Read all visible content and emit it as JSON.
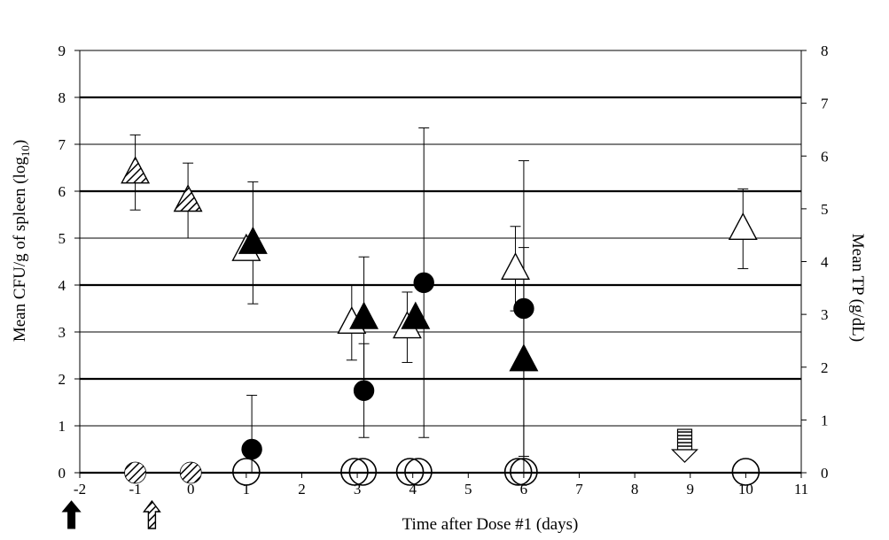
{
  "chart_data": {
    "type": "scatter",
    "xlabel": "Time after Dose #1 (days)",
    "ylabel_left": "Mean CFU/g of spleen (log10)",
    "ylabel_left_main": "Mean CFU/g of spleen (log",
    "ylabel_left_sub": "10",
    "ylabel_left_end": ")",
    "ylabel_right": "Mean TP (g/dL)",
    "xlim": [
      -2,
      11
    ],
    "ylim_left": [
      0,
      9
    ],
    "ylim_right": [
      0,
      8
    ],
    "x_ticks": [
      "-2",
      "-1",
      "0",
      "1",
      "2",
      "3",
      "4",
      "5",
      "6",
      "7",
      "8",
      "9",
      "10",
      "11"
    ],
    "y_left_ticks": [
      "0",
      "1",
      "2",
      "3",
      "4",
      "5",
      "6",
      "7",
      "8",
      "9"
    ],
    "y_right_ticks": [
      "0",
      "1",
      "2",
      "3",
      "4",
      "5",
      "6",
      "7",
      "8"
    ],
    "grid": "horizontal",
    "legend": "none",
    "series": [
      {
        "marker": "hatched-triangle",
        "axis": "left",
        "points": [
          {
            "x": -1,
            "y": 6.4,
            "err": 0.8
          },
          {
            "x": -0.05,
            "y": 5.8,
            "err": 0.8
          }
        ]
      },
      {
        "marker": "open-triangle",
        "axis": "left",
        "points": [
          {
            "x": 1.0,
            "y": 4.75
          },
          {
            "x": 2.9,
            "y": 3.2,
            "err": 0.8
          },
          {
            "x": 3.9,
            "y": 3.1,
            "err": 0.75
          },
          {
            "x": 5.85,
            "y": 4.35,
            "err": 0.9
          },
          {
            "x": 9.95,
            "y": 5.2,
            "err": 0.85
          }
        ]
      },
      {
        "marker": "filled-triangle",
        "axis": "left",
        "points": [
          {
            "x": 1.12,
            "y": 4.9,
            "err": 1.3
          },
          {
            "x": 3.12,
            "y": 3.3,
            "err": 1.3
          },
          {
            "x": 4.05,
            "y": 3.3
          },
          {
            "x": 6.0,
            "y": 2.4,
            "err": 2.4
          }
        ]
      },
      {
        "marker": "filled-circle",
        "axis": "left",
        "points": [
          {
            "x": 1.1,
            "y": 0.5,
            "err": 1.15
          },
          {
            "x": 3.12,
            "y": 1.75,
            "err": 1.0
          },
          {
            "x": 4.2,
            "y": 4.05,
            "err": 3.3
          },
          {
            "x": 6.0,
            "y": 3.5,
            "err": 3.15
          }
        ]
      },
      {
        "marker": "open-circle",
        "axis": "right",
        "points": [
          {
            "x": 1.0,
            "y": 0.0
          },
          {
            "x": 2.95,
            "y": 0.0
          },
          {
            "x": 3.1,
            "y": 0.0
          },
          {
            "x": 3.95,
            "y": 0.0
          },
          {
            "x": 4.1,
            "y": 0.0
          },
          {
            "x": 5.9,
            "y": 0.0
          },
          {
            "x": 6.0,
            "y": 0.0
          },
          {
            "x": 10.0,
            "y": 0.0
          }
        ]
      },
      {
        "marker": "hatched-circle",
        "axis": "right",
        "points": [
          {
            "x": -1.0,
            "y": 0.0
          },
          {
            "x": 0.0,
            "y": 0.0
          }
        ]
      }
    ],
    "arrows": [
      {
        "style": "solid-up",
        "x": -2.15
      },
      {
        "style": "hollow-up",
        "x": -0.7
      },
      {
        "style": "striped-down",
        "x": 8.9
      }
    ]
  }
}
